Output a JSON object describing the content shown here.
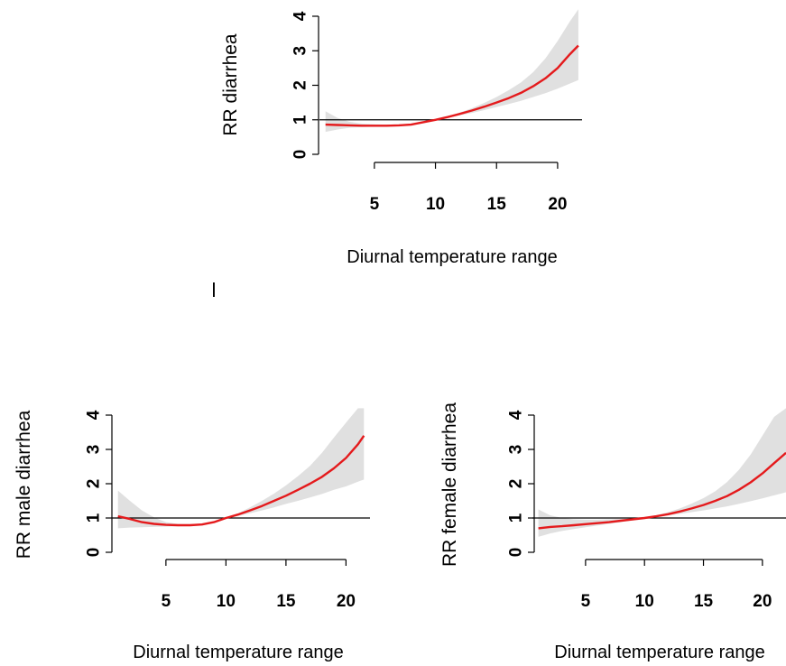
{
  "panel_mark": "l",
  "chart_data": [
    {
      "type": "line",
      "ylabel": "RR diarrhea",
      "xlabel": "Diurnal temperature range",
      "xlim": [
        0.8,
        22.0
      ],
      "ylim": [
        0,
        4
      ],
      "xticks": [
        5,
        10,
        15,
        20
      ],
      "yticks": [
        0,
        1,
        2,
        3,
        4
      ],
      "xtick_labels": [
        "5",
        "10",
        "15",
        "20"
      ],
      "ytick_labels": [
        "0",
        "1",
        "2",
        "3",
        "4"
      ],
      "reference_line": 1,
      "line_color": "#e41a1c",
      "band_color": "#e0e0e0",
      "series": [
        {
          "x": [
            1,
            2,
            3,
            4,
            5,
            6,
            7,
            8,
            9,
            10,
            11,
            12,
            13,
            14,
            15,
            16,
            17,
            18,
            19,
            20,
            21,
            21.7
          ],
          "y": [
            0.86,
            0.85,
            0.84,
            0.83,
            0.83,
            0.83,
            0.84,
            0.86,
            0.93,
            1.0,
            1.08,
            1.17,
            1.27,
            1.38,
            1.5,
            1.63,
            1.78,
            1.97,
            2.2,
            2.5,
            2.9,
            3.15
          ],
          "lower": [
            0.65,
            0.72,
            0.77,
            0.79,
            0.8,
            0.81,
            0.82,
            0.84,
            0.91,
            1.0,
            1.06,
            1.13,
            1.2,
            1.28,
            1.37,
            1.46,
            1.55,
            1.66,
            1.77,
            1.9,
            2.05,
            2.15
          ],
          "upper": [
            1.25,
            1.05,
            0.94,
            0.89,
            0.87,
            0.86,
            0.87,
            0.89,
            0.95,
            1.0,
            1.1,
            1.21,
            1.34,
            1.49,
            1.66,
            1.86,
            2.08,
            2.38,
            2.78,
            3.28,
            3.85,
            4.2
          ]
        }
      ]
    },
    {
      "type": "line",
      "ylabel": "RR male diarrhea",
      "xlabel": "Diurnal temperature range",
      "xlim": [
        0.8,
        22.0
      ],
      "ylim": [
        0,
        4
      ],
      "xticks": [
        5,
        10,
        15,
        20
      ],
      "yticks": [
        0,
        1,
        2,
        3,
        4
      ],
      "xtick_labels": [
        "5",
        "10",
        "15",
        "20"
      ],
      "ytick_labels": [
        "0",
        "1",
        "2",
        "3",
        "4"
      ],
      "reference_line": 1,
      "line_color": "#e41a1c",
      "band_color": "#e0e0e0",
      "series": [
        {
          "x": [
            1,
            2,
            3,
            4,
            5,
            6,
            7,
            8,
            9,
            10,
            11,
            12,
            13,
            14,
            15,
            16,
            17,
            18,
            19,
            20,
            21,
            21.5
          ],
          "y": [
            1.05,
            0.97,
            0.88,
            0.83,
            0.8,
            0.79,
            0.79,
            0.81,
            0.88,
            1.0,
            1.1,
            1.22,
            1.35,
            1.5,
            1.65,
            1.82,
            2.0,
            2.2,
            2.45,
            2.75,
            3.15,
            3.4
          ],
          "lower": [
            0.7,
            0.72,
            0.73,
            0.74,
            0.75,
            0.76,
            0.77,
            0.79,
            0.86,
            1.0,
            1.06,
            1.14,
            1.22,
            1.31,
            1.41,
            1.5,
            1.6,
            1.7,
            1.82,
            1.92,
            2.06,
            2.12
          ],
          "upper": [
            1.8,
            1.5,
            1.22,
            1.02,
            0.88,
            0.83,
            0.82,
            0.84,
            0.9,
            1.0,
            1.14,
            1.31,
            1.5,
            1.71,
            1.95,
            2.22,
            2.52,
            2.9,
            3.35,
            3.78,
            4.2,
            4.2
          ]
        }
      ]
    },
    {
      "type": "line",
      "ylabel": "RR female diarrhea",
      "xlabel": "Diurnal temperature range",
      "xlim": [
        0.8,
        22.0
      ],
      "ylim": [
        0,
        4
      ],
      "xticks": [
        5,
        10,
        15,
        20
      ],
      "yticks": [
        0,
        1,
        2,
        3,
        4
      ],
      "xtick_labels": [
        "5",
        "10",
        "15",
        "20"
      ],
      "ytick_labels": [
        "0",
        "1",
        "2",
        "3",
        "4"
      ],
      "reference_line": 1,
      "line_color": "#e41a1c",
      "band_color": "#e0e0e0",
      "series": [
        {
          "x": [
            1,
            2,
            3,
            4,
            5,
            6,
            7,
            8,
            9,
            10,
            11,
            12,
            13,
            14,
            15,
            16,
            17,
            18,
            19,
            20,
            21,
            22
          ],
          "y": [
            0.7,
            0.74,
            0.76,
            0.79,
            0.82,
            0.85,
            0.88,
            0.92,
            0.96,
            1.0,
            1.05,
            1.11,
            1.19,
            1.28,
            1.38,
            1.5,
            1.64,
            1.82,
            2.04,
            2.3,
            2.6,
            2.9
          ],
          "lower": [
            0.45,
            0.55,
            0.62,
            0.68,
            0.73,
            0.78,
            0.83,
            0.88,
            0.94,
            1.0,
            1.03,
            1.07,
            1.12,
            1.17,
            1.22,
            1.28,
            1.34,
            1.41,
            1.49,
            1.57,
            1.66,
            1.75
          ],
          "upper": [
            1.25,
            1.08,
            1.0,
            0.96,
            0.95,
            0.95,
            0.96,
            0.97,
            0.99,
            1.0,
            1.08,
            1.17,
            1.28,
            1.42,
            1.58,
            1.78,
            2.05,
            2.4,
            2.85,
            3.4,
            3.95,
            4.2
          ]
        }
      ]
    }
  ]
}
